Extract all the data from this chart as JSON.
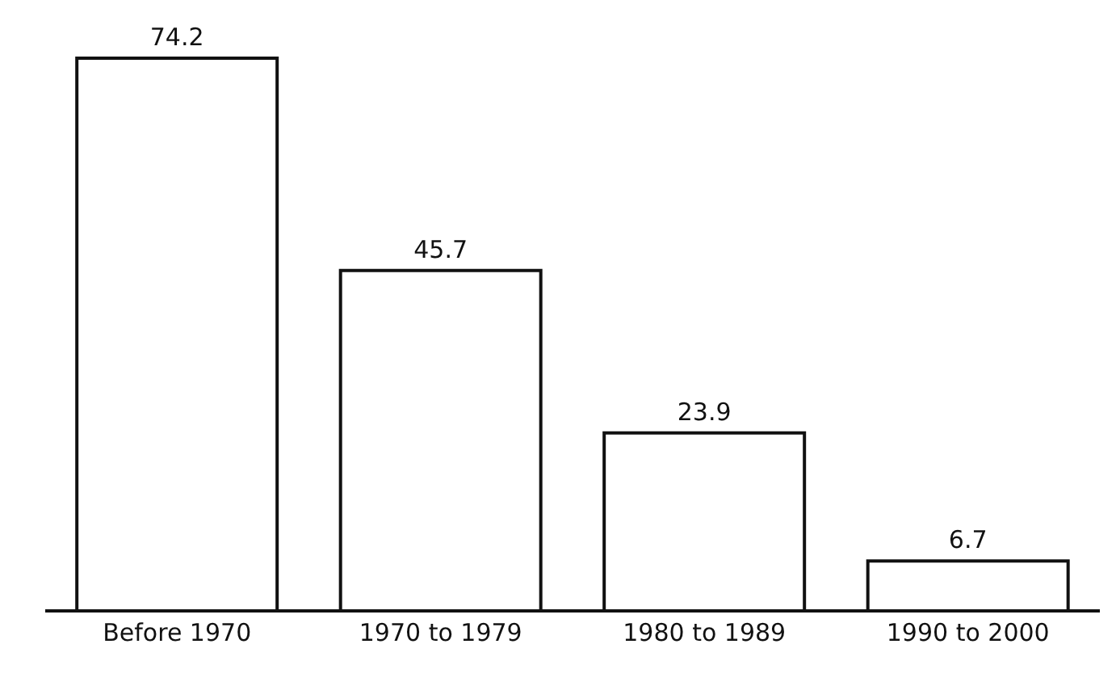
{
  "chart_data": {
    "type": "bar",
    "categories": [
      "Before 1970",
      "1970 to 1979",
      "1980 to 1989",
      "1990 to 2000"
    ],
    "values": [
      74.2,
      45.7,
      23.9,
      6.7
    ],
    "color": "#ffffff",
    "data_labels": true
  }
}
